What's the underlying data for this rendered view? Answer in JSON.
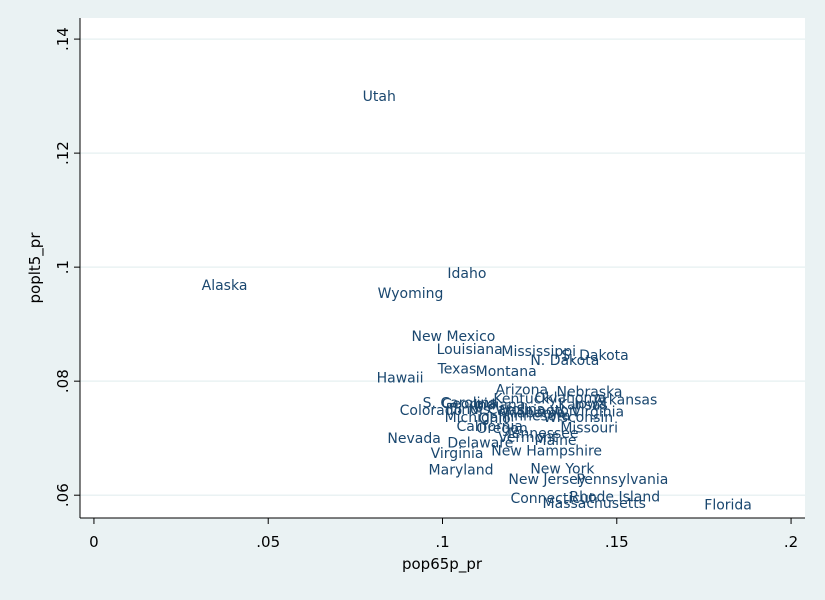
{
  "chart_data": {
    "type": "scatter",
    "xlabel": "pop65p_pr",
    "ylabel": "poplt5_pr",
    "xlim": [
      -0.004,
      0.204
    ],
    "ylim": [
      0.056,
      0.1437
    ],
    "xticks": [
      0,
      {
        "value": 0.05,
        "label": ".05"
      },
      {
        "value": 0.1,
        "label": ".1"
      },
      {
        "value": 0.15,
        "label": ".15"
      },
      {
        "value": 0.2,
        "label": ".2"
      }
    ],
    "yticks": [
      {
        "value": 0.06,
        "label": ".06"
      },
      {
        "value": 0.08,
        "label": ".08"
      },
      {
        "value": 0.1,
        "label": ".1"
      },
      {
        "value": 0.12,
        "label": ".12"
      },
      {
        "value": 0.14,
        "label": ".14"
      }
    ],
    "grid": true,
    "color": "#1a476f",
    "point_labels": [
      "Alabama",
      "Alaska",
      "Arizona",
      "Arkansas",
      "California",
      "Colorado",
      "Connecticut",
      "Delaware",
      "Florida",
      "Georgia",
      "Hawaii",
      "Idaho",
      "Illinois",
      "Indiana",
      "Iowa",
      "Kansas",
      "Kentucky",
      "Louisiana",
      "Maine",
      "Maryland",
      "Massachusetts",
      "Michigan",
      "Minnesota",
      "Mississippi",
      "Missouri",
      "Montana",
      "Nebraska",
      "Nevada",
      "New Hampshire",
      "New Jersey",
      "New Mexico",
      "New York",
      "N. Carolina",
      "N. Dakota",
      "Ohio",
      "Oklahoma",
      "Oregon",
      "Pennsylvania",
      "Rhode Island",
      "S. Carolina",
      "S. Dakota",
      "Tennessee",
      "Texas",
      "Utah",
      "Vermont",
      "Virginia",
      "Washington",
      "W. Virginia",
      "Wisconsin",
      "Wyoming"
    ],
    "x": [
      0.1175,
      0.0309,
      0.1152,
      0.1433,
      0.104,
      0.0877,
      0.1195,
      0.1014,
      0.1751,
      0.0997,
      0.0811,
      0.1014,
      0.1009,
      0.1089,
      0.1378,
      0.1332,
      0.1146,
      0.0983,
      0.1264,
      0.096,
      0.1287,
      0.1006,
      0.116,
      0.1169,
      0.1338,
      0.1095,
      0.1327,
      0.0842,
      0.114,
      0.1189,
      0.0911,
      0.1252,
      0.1074,
      0.1252,
      0.1103,
      0.1264,
      0.1097,
      0.1384,
      0.1364,
      0.0943,
      0.1341,
      0.1181,
      0.0986,
      0.0771,
      0.116,
      0.0966,
      0.1152,
      0.1309,
      0.1289,
      0.0814
    ],
    "values": [
      0.0745,
      0.0969,
      0.0785,
      0.0768,
      0.0721,
      0.0749,
      0.0595,
      0.0692,
      0.0584,
      0.0761,
      0.0806,
      0.099,
      0.0751,
      0.0759,
      0.0761,
      0.0759,
      0.077,
      0.0856,
      0.0697,
      0.0645,
      0.0586,
      0.0737,
      0.074,
      0.0853,
      0.0719,
      0.0818,
      0.0782,
      0.07,
      0.0678,
      0.0628,
      0.0879,
      0.0647,
      0.0751,
      0.0837,
      0.0735,
      0.0771,
      0.0718,
      0.0628,
      0.0598,
      0.0763,
      0.0846,
      0.0709,
      0.0822,
      0.13,
      0.0702,
      0.0674,
      0.0749,
      0.0747,
      0.0737,
      0.0955
    ]
  }
}
